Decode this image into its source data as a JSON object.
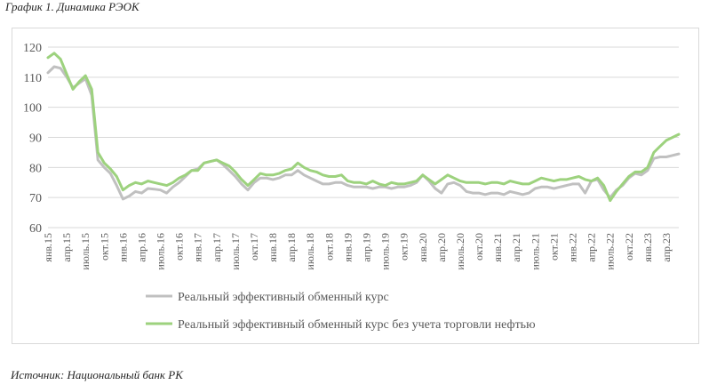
{
  "caption": "График 1. Динамика РЭОК",
  "source": "Источник: Национальный банк РК",
  "colors": {
    "series1": "#c0c0c0",
    "series2": "#9dd27e",
    "grid": "#d9d9d9",
    "text": "#595959"
  },
  "chart_data": {
    "type": "line",
    "title": "",
    "ylim": [
      60,
      120
    ],
    "yticks": [
      60,
      70,
      80,
      90,
      100,
      110,
      120
    ],
    "grid": "horizontal",
    "legend_position": "bottom",
    "x": [
      "янв.15",
      "фев.15",
      "мар.15",
      "апр.15",
      "май.15",
      "июнь.15",
      "июль.15",
      "авг.15",
      "сен.15",
      "окт.15",
      "ноя.15",
      "дек.15",
      "янв.16",
      "фев.16",
      "мар.16",
      "апр.16",
      "май.16",
      "июнь.16",
      "июль.16",
      "авг.16",
      "сен.16",
      "окт.16",
      "ноя.16",
      "дек.16",
      "янв.17",
      "фев.17",
      "мар.17",
      "апр.17",
      "май.17",
      "июнь.17",
      "июль.17",
      "авг.17",
      "сен.17",
      "окт.17",
      "ноя.17",
      "дек.17",
      "янв.18",
      "фев.18",
      "мар.18",
      "апр.18",
      "май.18",
      "июнь.18",
      "июль.18",
      "авг.18",
      "сен.18",
      "окт.18",
      "ноя.18",
      "дек.18",
      "янв.19",
      "фев.19",
      "мар.19",
      "апр.19",
      "май.19",
      "июнь.19",
      "июль.19",
      "авг.19",
      "сен.19",
      "окт.19",
      "ноя.19",
      "дек.19",
      "янв.20",
      "фев.20",
      "мар.20",
      "апр.20",
      "май.20",
      "июнь.20",
      "июль.20",
      "авг.20",
      "сен.20",
      "окт.20",
      "ноя.20",
      "дек.20",
      "янв.21",
      "фев.21",
      "мар.21",
      "апр.21",
      "май.21",
      "июнь.21",
      "июль.21",
      "авг.21",
      "сен.21",
      "окт.21",
      "ноя.21",
      "дек.21",
      "янв.22",
      "фев.22",
      "мар.22",
      "апр.22",
      "май.22",
      "июнь.22",
      "июль.22",
      "авг.22",
      "сен.22",
      "окт.22",
      "ноя.22",
      "дек.22",
      "янв.23",
      "фев.23",
      "мар.23",
      "апр.23",
      "май.23",
      "июнь.23"
    ],
    "xtick_labels": [
      "янв.15",
      "апр.15",
      "июль.15",
      "окт.15",
      "янв.16",
      "апр.16",
      "июль.16",
      "окт.16",
      "янв.17",
      "апр.17",
      "июль.17",
      "окт.17",
      "янв.18",
      "апр.18",
      "июль.18",
      "окт.18",
      "янв.19",
      "апр.19",
      "июль.19",
      "окт.19",
      "янв.20",
      "апр.20",
      "июль.20",
      "окт.20",
      "янв.21",
      "апр.21",
      "июль.21",
      "окт.21",
      "янв.22",
      "апр.22",
      "июль.22",
      "окт.22",
      "янв.23",
      "апр.23"
    ],
    "series": [
      {
        "name": "Реальный эффективный обменный курс",
        "values": [
          111.5,
          113.5,
          113.0,
          110.0,
          106.5,
          108.0,
          109.5,
          104.0,
          82.5,
          80.0,
          78.0,
          74.0,
          69.5,
          70.5,
          72.0,
          71.5,
          73.0,
          72.8,
          72.5,
          71.5,
          73.5,
          75.0,
          77.0,
          79.0,
          79.5,
          81.5,
          82.0,
          82.5,
          81.0,
          79.0,
          77.0,
          74.5,
          72.5,
          75.0,
          76.5,
          76.5,
          76.0,
          76.5,
          77.5,
          77.5,
          79.0,
          77.5,
          76.5,
          75.5,
          74.5,
          74.5,
          75.0,
          75.0,
          74.0,
          73.5,
          73.5,
          73.5,
          73.0,
          73.5,
          73.5,
          73.0,
          73.5,
          73.5,
          74.0,
          75.0,
          77.5,
          75.5,
          73.0,
          71.5,
          74.5,
          75.0,
          74.0,
          72.0,
          71.5,
          71.5,
          71.0,
          71.5,
          71.5,
          71.0,
          72.0,
          71.5,
          71.0,
          71.5,
          73.0,
          73.5,
          73.5,
          73.0,
          73.5,
          74.0,
          74.5,
          74.5,
          71.5,
          75.5,
          76.0,
          72.5,
          70.0,
          72.5,
          74.0,
          76.5,
          78.0,
          77.5,
          79.0,
          83.0,
          83.5,
          83.5,
          84.0,
          84.5
        ]
      },
      {
        "name": "Реальный эффективный обменный курс без учета торговли нефтью",
        "values": [
          116.5,
          118.0,
          116.0,
          111.0,
          106.0,
          108.5,
          110.5,
          106.0,
          85.0,
          81.5,
          79.5,
          77.0,
          72.5,
          74.0,
          75.0,
          74.5,
          75.5,
          75.0,
          74.5,
          74.0,
          75.0,
          76.5,
          77.5,
          79.0,
          79.0,
          81.5,
          82.0,
          82.5,
          81.5,
          80.5,
          78.5,
          76.0,
          74.0,
          76.0,
          78.0,
          77.5,
          77.5,
          78.0,
          79.0,
          79.5,
          81.5,
          80.0,
          79.0,
          78.5,
          77.5,
          77.0,
          77.0,
          77.5,
          75.5,
          75.0,
          75.0,
          74.5,
          75.5,
          74.5,
          74.0,
          75.0,
          74.5,
          74.5,
          75.0,
          75.5,
          77.5,
          76.0,
          74.5,
          76.0,
          77.5,
          76.5,
          75.5,
          75.0,
          75.0,
          75.0,
          74.5,
          75.0,
          75.0,
          74.5,
          75.5,
          75.0,
          74.5,
          74.5,
          75.5,
          76.5,
          76.0,
          75.5,
          76.0,
          76.0,
          76.5,
          77.0,
          76.0,
          75.5,
          76.5,
          74.0,
          69.0,
          72.0,
          74.5,
          77.0,
          78.5,
          78.5,
          80.0,
          85.0,
          87.0,
          89.0,
          90.0,
          91.0
        ]
      }
    ]
  }
}
